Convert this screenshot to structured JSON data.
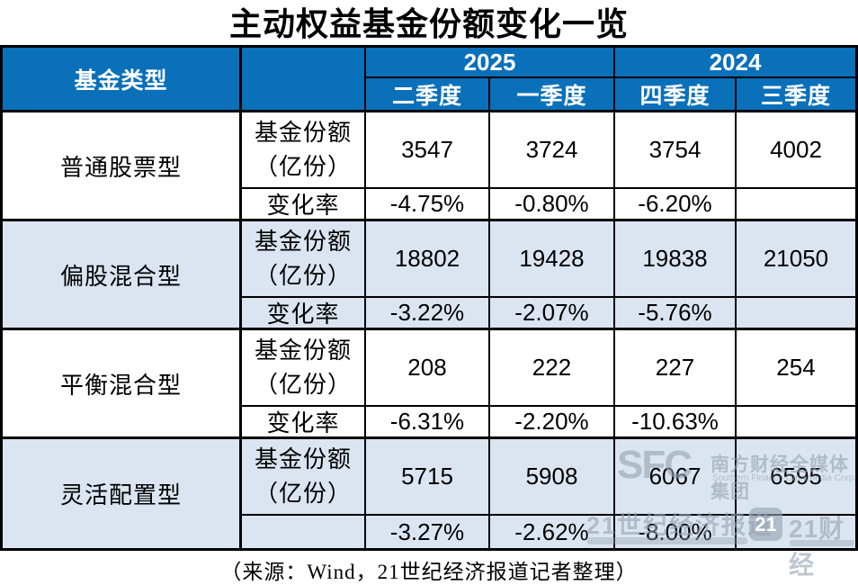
{
  "title": "主动权益基金份额变化一览",
  "header": {
    "fund_type": "基金类型",
    "years": [
      "2025",
      "2024"
    ],
    "quarters": [
      "二季度",
      "一季度",
      "四季度",
      "三季度"
    ]
  },
  "labels": {
    "share": "基金份额",
    "share_unit": "（亿份）",
    "change": "变化率"
  },
  "groups": [
    {
      "type": "普通股票型",
      "change_label": "变化率",
      "shares": [
        "3547",
        "3724",
        "3754",
        "4002"
      ],
      "changes": [
        "-4.75%",
        "-0.80%",
        "-6.20%",
        ""
      ]
    },
    {
      "type": "偏股混合型",
      "change_label": "变化率",
      "shares": [
        "18802",
        "19428",
        "19838",
        "21050"
      ],
      "changes": [
        "-3.22%",
        "-2.07%",
        "-5.76%",
        ""
      ]
    },
    {
      "type": "平衡混合型",
      "change_label": "变化率",
      "shares": [
        "208",
        "222",
        "227",
        "254"
      ],
      "changes": [
        "-6.31%",
        "-2.20%",
        "-10.63%",
        ""
      ]
    },
    {
      "type": "灵活配置型",
      "change_label": "",
      "shares": [
        "5715",
        "5908",
        "6067",
        "6595"
      ],
      "changes": [
        "-3.27%",
        "-2.62%",
        "-8.00%",
        ""
      ]
    }
  ],
  "footer": {
    "source": "（来源：Wind，21世纪经济报道记者整理）"
  },
  "watermark": {
    "sfc": "SFC",
    "group_cn": "南方财经全媒体集团",
    "group_en": "Southern Finance Omnimedia Corp.",
    "paper": "21世纪经济报道",
    "badge": "21",
    "app": "21财经"
  },
  "colors": {
    "header_bg": "#0a70ba",
    "band_bg": "#dbe5f1",
    "border": "#000000",
    "header_text": "#ffffff"
  },
  "chart_data": {
    "type": "table",
    "title": "主动权益基金份额变化一览",
    "unit": "亿份",
    "column_groups": [
      {
        "year": "2025",
        "quarters": [
          "二季度",
          "一季度"
        ]
      },
      {
        "year": "2024",
        "quarters": [
          "四季度",
          "三季度"
        ]
      }
    ],
    "rows": [
      {
        "fund_type": "普通股票型",
        "shares": [
          3547,
          3724,
          3754,
          4002
        ],
        "change_rate": [
          "-4.75%",
          "-0.80%",
          "-6.20%",
          null
        ]
      },
      {
        "fund_type": "偏股混合型",
        "shares": [
          18802,
          19428,
          19838,
          21050
        ],
        "change_rate": [
          "-3.22%",
          "-2.07%",
          "-5.76%",
          null
        ]
      },
      {
        "fund_type": "平衡混合型",
        "shares": [
          208,
          222,
          227,
          254
        ],
        "change_rate": [
          "-6.31%",
          "-2.20%",
          "-10.63%",
          null
        ]
      },
      {
        "fund_type": "灵活配置型",
        "shares": [
          5715,
          5908,
          6067,
          6595
        ],
        "change_rate": [
          "-3.27%",
          "-2.62%",
          "-8.00%",
          null
        ]
      }
    ],
    "source": "（来源：Wind，21世纪经济报道记者整理）"
  }
}
